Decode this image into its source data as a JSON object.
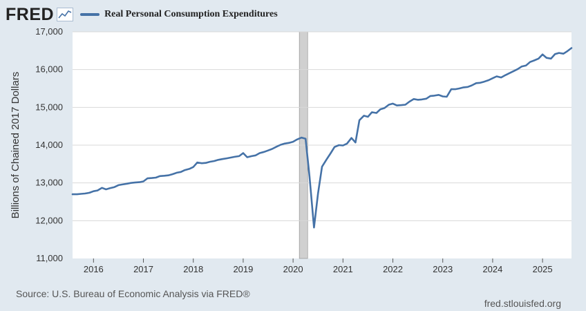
{
  "header": {
    "logo": "FRED",
    "logo_icon": "line-chart-icon"
  },
  "colors": {
    "line": "#4572a7",
    "background": "#e1e9f0",
    "plot_bg": "#ffffff",
    "recession": "#d0d0d0"
  },
  "chart_data": {
    "type": "line",
    "title": "",
    "xlabel": "",
    "ylabel": "Billions of Chained 2017 Dollars",
    "ylim": [
      11000,
      17000
    ],
    "xlim": [
      2015.58,
      2025.58
    ],
    "grid": true,
    "legend_placement": "top-left",
    "yticks": [
      {
        "value": 11000,
        "label": "11,000"
      },
      {
        "value": 12000,
        "label": "12,000"
      },
      {
        "value": 13000,
        "label": "13,000"
      },
      {
        "value": 14000,
        "label": "14,000"
      },
      {
        "value": 15000,
        "label": "15,000"
      },
      {
        "value": 16000,
        "label": "16,000"
      },
      {
        "value": 17000,
        "label": "17,000"
      }
    ],
    "xticks": [
      {
        "value": 2016,
        "label": "2016"
      },
      {
        "value": 2017,
        "label": "2017"
      },
      {
        "value": 2018,
        "label": "2018"
      },
      {
        "value": 2019,
        "label": "2019"
      },
      {
        "value": 2020,
        "label": "2020"
      },
      {
        "value": 2021,
        "label": "2021"
      },
      {
        "value": 2022,
        "label": "2022"
      },
      {
        "value": 2023,
        "label": "2023"
      },
      {
        "value": 2024,
        "label": "2024"
      },
      {
        "value": 2025,
        "label": "2025"
      }
    ],
    "recessions": [
      {
        "start": 2020.125,
        "end": 2020.292
      }
    ],
    "series": [
      {
        "name": "Real Personal Consumption Expenditures",
        "points": [
          [
            2015.58,
            12700
          ],
          [
            2015.67,
            12700
          ],
          [
            2015.75,
            12710
          ],
          [
            2015.83,
            12720
          ],
          [
            2015.92,
            12740
          ],
          [
            2016.0,
            12780
          ],
          [
            2016.08,
            12800
          ],
          [
            2016.17,
            12870
          ],
          [
            2016.25,
            12830
          ],
          [
            2016.33,
            12860
          ],
          [
            2016.42,
            12890
          ],
          [
            2016.5,
            12940
          ],
          [
            2016.58,
            12960
          ],
          [
            2016.67,
            12980
          ],
          [
            2016.75,
            13000
          ],
          [
            2016.83,
            13010
          ],
          [
            2016.92,
            13020
          ],
          [
            2017.0,
            13040
          ],
          [
            2017.08,
            13120
          ],
          [
            2017.17,
            13130
          ],
          [
            2017.25,
            13140
          ],
          [
            2017.33,
            13180
          ],
          [
            2017.42,
            13190
          ],
          [
            2017.5,
            13200
          ],
          [
            2017.58,
            13230
          ],
          [
            2017.67,
            13270
          ],
          [
            2017.75,
            13290
          ],
          [
            2017.83,
            13340
          ],
          [
            2017.92,
            13370
          ],
          [
            2018.0,
            13420
          ],
          [
            2018.08,
            13540
          ],
          [
            2018.17,
            13520
          ],
          [
            2018.25,
            13530
          ],
          [
            2018.33,
            13560
          ],
          [
            2018.42,
            13580
          ],
          [
            2018.5,
            13610
          ],
          [
            2018.58,
            13630
          ],
          [
            2018.67,
            13650
          ],
          [
            2018.75,
            13670
          ],
          [
            2018.83,
            13690
          ],
          [
            2018.92,
            13710
          ],
          [
            2019.0,
            13790
          ],
          [
            2019.08,
            13680
          ],
          [
            2019.17,
            13710
          ],
          [
            2019.25,
            13730
          ],
          [
            2019.33,
            13790
          ],
          [
            2019.42,
            13820
          ],
          [
            2019.5,
            13860
          ],
          [
            2019.58,
            13900
          ],
          [
            2019.67,
            13960
          ],
          [
            2019.75,
            14010
          ],
          [
            2019.83,
            14040
          ],
          [
            2019.92,
            14060
          ],
          [
            2020.0,
            14090
          ],
          [
            2020.08,
            14150
          ],
          [
            2020.17,
            14200
          ],
          [
            2020.25,
            14170
          ],
          [
            2020.33,
            13170
          ],
          [
            2020.42,
            11820
          ],
          [
            2020.5,
            12720
          ],
          [
            2020.58,
            13430
          ],
          [
            2020.67,
            13620
          ],
          [
            2020.75,
            13780
          ],
          [
            2020.83,
            13950
          ],
          [
            2020.92,
            14000
          ],
          [
            2021.0,
            13990
          ],
          [
            2021.08,
            14040
          ],
          [
            2021.17,
            14190
          ],
          [
            2021.25,
            14070
          ],
          [
            2021.33,
            14660
          ],
          [
            2021.42,
            14780
          ],
          [
            2021.5,
            14750
          ],
          [
            2021.58,
            14870
          ],
          [
            2021.67,
            14850
          ],
          [
            2021.75,
            14950
          ],
          [
            2021.83,
            14980
          ],
          [
            2021.92,
            15070
          ],
          [
            2022.0,
            15100
          ],
          [
            2022.08,
            15050
          ],
          [
            2022.17,
            15060
          ],
          [
            2022.25,
            15070
          ],
          [
            2022.33,
            15150
          ],
          [
            2022.42,
            15220
          ],
          [
            2022.5,
            15200
          ],
          [
            2022.58,
            15210
          ],
          [
            2022.67,
            15230
          ],
          [
            2022.75,
            15300
          ],
          [
            2022.83,
            15310
          ],
          [
            2022.92,
            15330
          ],
          [
            2023.0,
            15290
          ],
          [
            2023.08,
            15280
          ],
          [
            2023.17,
            15480
          ],
          [
            2023.25,
            15480
          ],
          [
            2023.33,
            15500
          ],
          [
            2023.42,
            15530
          ],
          [
            2023.5,
            15540
          ],
          [
            2023.58,
            15580
          ],
          [
            2023.67,
            15640
          ],
          [
            2023.75,
            15650
          ],
          [
            2023.83,
            15680
          ],
          [
            2023.92,
            15720
          ],
          [
            2024.0,
            15770
          ],
          [
            2024.08,
            15820
          ],
          [
            2024.17,
            15790
          ],
          [
            2024.25,
            15850
          ],
          [
            2024.33,
            15900
          ],
          [
            2024.42,
            15960
          ],
          [
            2024.5,
            16010
          ],
          [
            2024.58,
            16080
          ],
          [
            2024.67,
            16110
          ],
          [
            2024.75,
            16200
          ],
          [
            2024.83,
            16240
          ],
          [
            2024.92,
            16290
          ],
          [
            2025.0,
            16400
          ],
          [
            2025.08,
            16310
          ],
          [
            2025.17,
            16290
          ],
          [
            2025.25,
            16410
          ],
          [
            2025.33,
            16440
          ],
          [
            2025.42,
            16420
          ],
          [
            2025.5,
            16490
          ],
          [
            2025.58,
            16570
          ]
        ]
      }
    ]
  },
  "footer": {
    "source": "Source: U.S. Bureau of Economic Analysis via FRED®",
    "site": "fred.stlouisfed.org"
  }
}
